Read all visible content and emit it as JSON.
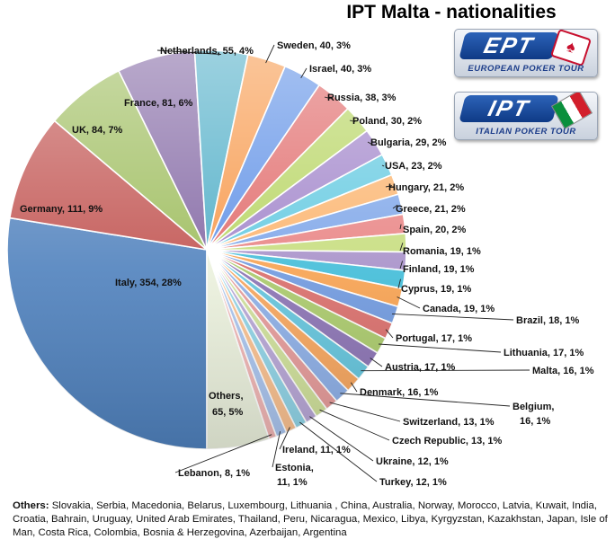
{
  "chart_data": {
    "type": "pie",
    "title": "IPT Malta - nationalities",
    "slices": [
      {
        "label": "Italy",
        "value": 354,
        "percent": "28%",
        "color": "#4f81bd"
      },
      {
        "label": "Germany",
        "value": 111,
        "percent": "9%",
        "color": "#c0504d"
      },
      {
        "label": "UK",
        "value": 84,
        "percent": "7%",
        "color": "#9bbb59"
      },
      {
        "label": "France",
        "value": 81,
        "percent": "6%",
        "color": "#8064a2"
      },
      {
        "label": "Netherlands",
        "value": 55,
        "percent": "4%",
        "color": "#4bacc6"
      },
      {
        "label": "Sweden",
        "value": 40,
        "percent": "3%",
        "color": "#f79646"
      },
      {
        "label": "Israel",
        "value": 40,
        "percent": "3%",
        "color": "#5b8ee6"
      },
      {
        "label": "Russia",
        "value": 38,
        "percent": "3%",
        "color": "#e06666"
      },
      {
        "label": "Poland",
        "value": 30,
        "percent": "2%",
        "color": "#b6d45f"
      },
      {
        "label": "Bulgaria",
        "value": 29,
        "percent": "2%",
        "color": "#9f82c9"
      },
      {
        "label": "USA",
        "value": 23,
        "percent": "2%",
        "color": "#5fc8e0"
      },
      {
        "label": "Hungary",
        "value": 21,
        "percent": "2%",
        "color": "#fbb26a"
      },
      {
        "label": "Greece",
        "value": 21,
        "percent": "2%",
        "color": "#7aa3e8"
      },
      {
        "label": "Spain",
        "value": 20,
        "percent": "2%",
        "color": "#e88080"
      },
      {
        "label": "Romania",
        "value": 19,
        "percent": "1%",
        "color": "#c5dc7a"
      },
      {
        "label": "Finland",
        "value": 19,
        "percent": "1%",
        "color": "#a68fc8"
      },
      {
        "label": "Cyprus",
        "value": 19,
        "percent": "1%",
        "color": "#40bcd8"
      },
      {
        "label": "Canada",
        "value": 19,
        "percent": "1%",
        "color": "#f7a14f"
      },
      {
        "label": "Brazil",
        "value": 18,
        "percent": "1%",
        "color": "#6e98de"
      },
      {
        "label": "Portugal",
        "value": 17,
        "percent": "1%",
        "color": "#d96d6a"
      },
      {
        "label": "Lithuania",
        "value": 17,
        "percent": "1%",
        "color": "#a9c96a"
      },
      {
        "label": "Austria",
        "value": 17,
        "percent": "1%",
        "color": "#8a72b3"
      },
      {
        "label": "Malta",
        "value": 16,
        "percent": "1%",
        "color": "#63c4dc"
      },
      {
        "label": "Denmark",
        "value": 16,
        "percent": "1%",
        "color": "#f6a55d"
      },
      {
        "label": "Belgium",
        "value": 16,
        "percent": "1%",
        "color": "#8caee6"
      },
      {
        "label": "Switzerland",
        "value": 13,
        "percent": "1%",
        "color": "#e59a99"
      },
      {
        "label": "Czech Republic",
        "value": 13,
        "percent": "1%",
        "color": "#cfe09a"
      },
      {
        "label": "Ukraine",
        "value": 12,
        "percent": "1%",
        "color": "#b7a6d6"
      },
      {
        "label": "Turkey",
        "value": 12,
        "percent": "1%",
        "color": "#8fd3e6"
      },
      {
        "label": "Ireland",
        "value": 11,
        "percent": "1%",
        "color": "#f9c08f"
      },
      {
        "label": "Estonia",
        "value": 11,
        "percent": "1%",
        "color": "#a9c4ee"
      },
      {
        "label": "Lebanon",
        "value": 8,
        "percent": "1%",
        "color": "#f0b5b4"
      },
      {
        "label": "Others",
        "value": 65,
        "percent": "5%",
        "color": "#ebf1dd"
      }
    ]
  },
  "logos": {
    "ept": {
      "mark": "EPT",
      "tagline": "EUROPEAN POKER TOUR"
    },
    "ipt": {
      "mark": "IPT",
      "tagline": "ITALIAN POKER TOUR"
    }
  },
  "others_note": {
    "heading": "Others:",
    "text": "Slovakia, Serbia, Macedonia, Belarus, Luxembourg, Lithuania , China, Australia, Norway, Morocco, Latvia, Kuwait, India, Croatia, Bahrain, Uruguay, United Arab Emirates, Thailand, Peru, Nicaragua, Mexico, Libya, Kyrgyzstan, Kazakhstan, Japan, Isle of Man, Costa Rica, Colombia, Bosnia & Herzegovina, Azerbaijan, Argentina"
  }
}
